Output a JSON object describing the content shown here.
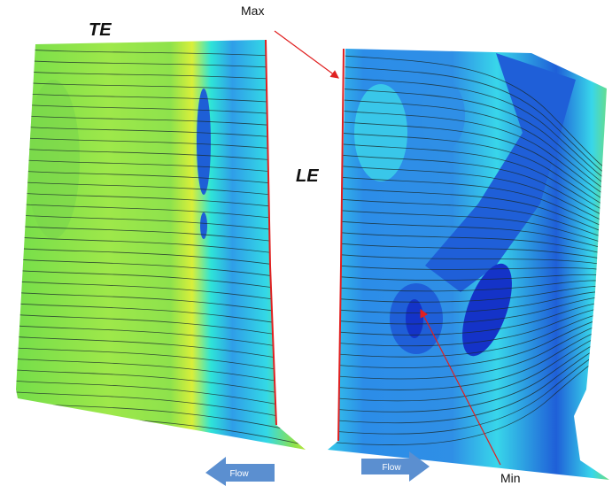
{
  "left_blade": {
    "label": "TE",
    "flow_label": "Flow"
  },
  "right_blade": {
    "label": "LE",
    "flow_label": "Flow"
  },
  "annotations": {
    "max": "Max",
    "min": "Min"
  }
}
